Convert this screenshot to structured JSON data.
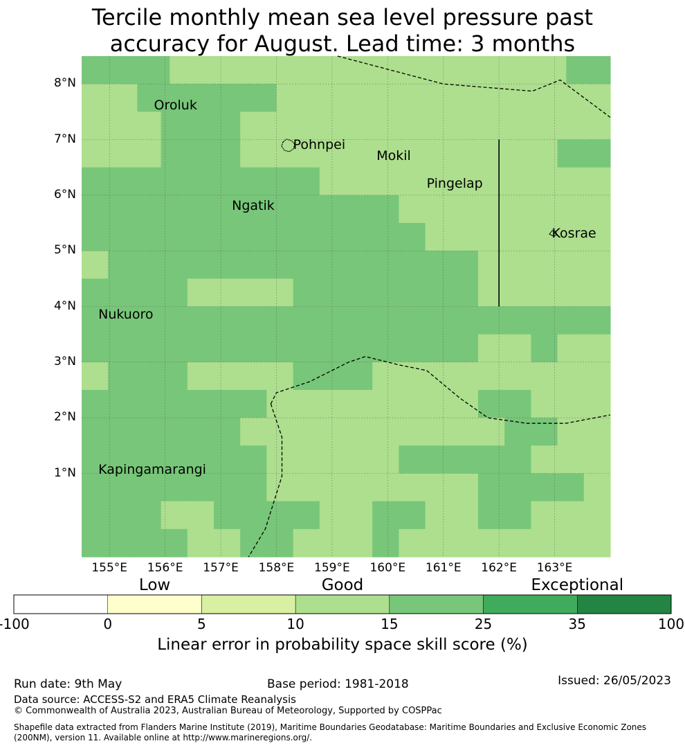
{
  "title": {
    "line1": "Tercile monthly mean sea level pressure past",
    "line2": "accuracy for August. Lead time: 3 months"
  },
  "map": {
    "lon_range": [
      154.5,
      164.0
    ],
    "lat_range": [
      -0.5,
      8.5
    ],
    "grid_step_deg": 0.833,
    "lat_ticks": [
      {
        "value": 8,
        "label": "8°N"
      },
      {
        "value": 7,
        "label": "7°N"
      },
      {
        "value": 6,
        "label": "6°N"
      },
      {
        "value": 5,
        "label": "5°N"
      },
      {
        "value": 4,
        "label": "4°N"
      },
      {
        "value": 3,
        "label": "3°N"
      },
      {
        "value": 2,
        "label": "2°N"
      },
      {
        "value": 1,
        "label": "1°N"
      }
    ],
    "lon_ticks": [
      {
        "value": 155,
        "label": "155°E"
      },
      {
        "value": 156,
        "label": "156°E"
      },
      {
        "value": 157,
        "label": "157°E"
      },
      {
        "value": 158,
        "label": "158°E"
      },
      {
        "value": 159,
        "label": "159°E"
      },
      {
        "value": 160,
        "label": "160°E"
      },
      {
        "value": 161,
        "label": "161°E"
      },
      {
        "value": 162,
        "label": "162°E"
      },
      {
        "value": 163,
        "label": "163°E"
      }
    ],
    "skill_grid_rows_north_to_south": [
      "GGL3L3L3L3L3L3L3L3L3G",
      "LL GGGGGLLLLLLLLLLLL",
      "LLLGGGLLLLLLLLLLLLLL",
      "LLLGGGLLLLLLLLLLLLGG",
      "GGGGGGGGGLLLLLLLLLLL",
      "GGGGGGGGGGGGLLLLLLLL",
      "GGGGGGGGGGGGGLLLLLLL",
      "LGGGGGGGGGGGGGGLLLLL",
      "GGGGLLLLGGGGGGGLLLLL",
      "GGGGGGGGGGGGGGGGGGGG",
      "GGGGGGGGGGGGGGGLLGLL",
      "LGGGLLLLGGGLLLLLLLLL",
      "GGGGGGGLLLLLLLLGGLLL",
      "GGGGGGLLLLLLLLLLGGLL",
      "GGGGGGGLLLLLGGGGGLLL",
      "GGGGGGGLLLLLLLLGGGGL",
      "GGGLLGGGGLLGGLLGGLLL",
      "GGGGLLGGLLLGLLLLLLLL"
    ],
    "skill_legend": {
      "L": "10-15",
      "G": "15-25"
    },
    "cell_colors": {
      "L": "#addf8e",
      "G": "#78c679"
    },
    "places": [
      {
        "name": "Oroluk",
        "lon": 155.8,
        "lat": 7.6
      },
      {
        "name": "Pohnpei",
        "lon": 158.3,
        "lat": 6.9
      },
      {
        "name": "Mokil",
        "lon": 159.8,
        "lat": 6.7
      },
      {
        "name": "Pingelap",
        "lon": 160.7,
        "lat": 6.2
      },
      {
        "name": "Ngatik",
        "lon": 157.2,
        "lat": 5.8
      },
      {
        "name": "Kosrae",
        "lon": 162.95,
        "lat": 5.3
      },
      {
        "name": "Nukuoro",
        "lon": 154.8,
        "lat": 3.85
      },
      {
        "name": "Kapingamarangi",
        "lon": 154.8,
        "lat": 1.05
      }
    ],
    "eez_boundaries": [
      {
        "style": "dashed",
        "points": [
          [
            159.1,
            8.5
          ],
          [
            161.0,
            8.0
          ],
          [
            162.6,
            7.87
          ],
          [
            163.1,
            8.07
          ],
          [
            164.0,
            7.4
          ]
        ]
      },
      {
        "style": "dashed",
        "points": [
          [
            157.9,
            2.25
          ],
          [
            158.0,
            2.45
          ],
          [
            158.6,
            2.65
          ],
          [
            159.3,
            3.0
          ],
          [
            159.6,
            3.1
          ],
          [
            160.2,
            2.95
          ],
          [
            160.7,
            2.85
          ],
          [
            161.3,
            2.35
          ],
          [
            161.8,
            2.0
          ],
          [
            162.5,
            1.9
          ],
          [
            163.2,
            1.9
          ],
          [
            164.0,
            2.05
          ]
        ]
      },
      {
        "style": "dashed",
        "points": [
          [
            157.9,
            2.25
          ],
          [
            158.1,
            1.65
          ],
          [
            158.1,
            0.95
          ],
          [
            157.8,
            0.0
          ],
          [
            157.5,
            -0.5
          ]
        ]
      },
      {
        "style": "solid",
        "points": [
          [
            162.0,
            7.0
          ],
          [
            162.0,
            4.0
          ]
        ]
      }
    ]
  },
  "colorbar": {
    "categories": [
      {
        "label": "Low",
        "center_index": 1.5
      },
      {
        "label": "Good",
        "center_index": 3.5
      },
      {
        "label": "Exceptional",
        "center_index": 6
      }
    ],
    "ticks": [
      "-100",
      "0",
      "5",
      "10",
      "15",
      "25",
      "35",
      "100"
    ],
    "colors": [
      "#ffffff",
      "#ffffcc",
      "#d9f0a3",
      "#addf8e",
      "#78c679",
      "#41ab5d",
      "#238443"
    ],
    "label": "Linear error in probability space skill score (%)"
  },
  "footer": {
    "run_date": "Run date: 9th May",
    "base_period": "Base period: 1981-2018",
    "issued": "Issued: 26/05/2023",
    "data_source": "Data source: ACCESS-S2 and ERA5 Climate Reanalysis",
    "copyright": "© Commonwealth of Australia 2023, Australian Bureau of Meteorology, Supported by COSPPac",
    "shapefile_line1": "Shapefile data extracted from Flanders Marine Institute (2019), Maritime Boundaries Geodatabase: Maritime Boundaries and Exclusive Economic Zones",
    "shapefile_line2": "(200NM), version 11. Available online at http://www.marineregions.org/."
  }
}
